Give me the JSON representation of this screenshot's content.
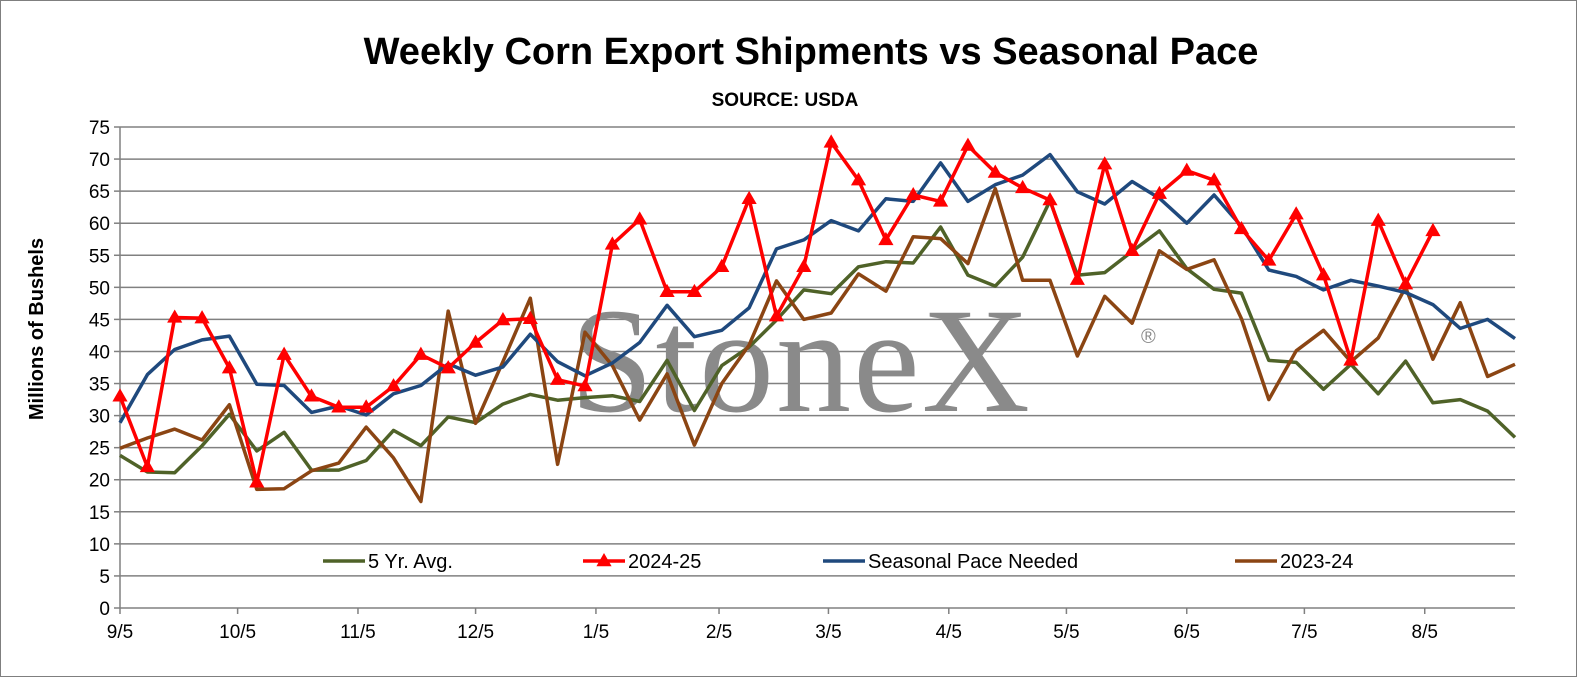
{
  "chart_data": {
    "type": "line",
    "title": "Weekly Corn Export Shipments vs Seasonal Pace",
    "subtitle": "SOURCE: USDA",
    "ylabel": "Millions of Bushels",
    "ylim": [
      0,
      75
    ],
    "yticks": [
      0,
      5,
      10,
      15,
      20,
      25,
      30,
      35,
      40,
      45,
      50,
      55,
      60,
      65,
      70,
      75
    ],
    "week_count": 52,
    "xticks": [
      {
        "label": "9/5",
        "week": 0
      },
      {
        "label": "10/5",
        "week": 4.3
      },
      {
        "label": "11/5",
        "week": 8.7
      },
      {
        "label": "12/5",
        "week": 13
      },
      {
        "label": "1/5",
        "week": 17.4
      },
      {
        "label": "2/5",
        "week": 21.9
      },
      {
        "label": "3/5",
        "week": 25.9
      },
      {
        "label": "4/5",
        "week": 30.3
      },
      {
        "label": "5/5",
        "week": 34.6
      },
      {
        "label": "6/5",
        "week": 39
      },
      {
        "label": "7/5",
        "week": 43.3
      },
      {
        "label": "8/5",
        "week": 47.7
      }
    ],
    "grid": true,
    "legend_position": "bottom",
    "watermark": "StoneX",
    "watermark_mark": "®",
    "series": [
      {
        "name": "5 Yr. Avg.",
        "color": "#4f6228",
        "marker": "none",
        "values": [
          23.8,
          21.2,
          21.1,
          25.3,
          30.2,
          24.5,
          27.4,
          21.5,
          21.5,
          23.0,
          27.7,
          25.3,
          29.8,
          28.9,
          31.8,
          33.3,
          32.4,
          32.8,
          33.1,
          32.2,
          38.6,
          30.8,
          37.8,
          40.7,
          44.9,
          49.6,
          49.0,
          53.2,
          54.0,
          53.8,
          59.4,
          51.9,
          50.2,
          54.7,
          63.5,
          51.9,
          52.3,
          55.6,
          58.8,
          52.9,
          49.7,
          49.1,
          38.6,
          38.3,
          34.1,
          38.0,
          33.4,
          38.5,
          32.0,
          32.5,
          30.7,
          26.6
        ]
      },
      {
        "name": "2024-25",
        "color": "#ff0000",
        "marker": "triangle",
        "values": [
          33.0,
          22.0,
          45.3,
          45.2,
          37.4,
          19.6,
          39.5,
          33.0,
          31.3,
          31.3,
          34.6,
          39.5,
          37.4,
          41.4,
          44.9,
          45.1,
          35.6,
          34.6,
          56.7,
          60.6,
          49.3,
          49.3,
          53.2,
          63.8,
          45.5,
          53.2,
          72.6,
          66.7,
          57.4,
          64.4,
          63.4,
          72.1,
          67.9,
          65.5,
          63.6,
          51.2,
          69.2,
          55.7,
          64.6,
          68.2,
          66.7,
          59.1,
          54.2,
          61.4,
          51.9,
          38.6,
          60.4,
          50.5,
          58.8
        ]
      },
      {
        "name": "Seasonal Pace Needed",
        "color": "#1f497d",
        "marker": "none",
        "values": [
          28.9,
          36.4,
          40.3,
          41.8,
          42.4,
          34.9,
          34.7,
          30.5,
          31.5,
          30.1,
          33.4,
          34.7,
          38.1,
          36.3,
          37.6,
          42.7,
          38.4,
          36.2,
          38.2,
          41.4,
          47.2,
          42.3,
          43.3,
          46.8,
          56.0,
          57.4,
          60.4,
          58.8,
          63.8,
          63.4,
          69.4,
          63.4,
          66.0,
          67.5,
          70.7,
          64.9,
          63.0,
          66.5,
          63.9,
          60.0,
          64.4,
          59.5,
          52.7,
          51.7,
          49.6,
          51.1,
          50.2,
          49.2,
          47.3,
          43.6,
          45.0,
          42.0
        ]
      },
      {
        "name": "2023-24",
        "color": "#8b4513",
        "marker": "none",
        "values": [
          24.9,
          26.5,
          27.9,
          26.2,
          31.7,
          18.5,
          18.6,
          21.4,
          22.6,
          28.2,
          23.4,
          16.6,
          46.3,
          28.8,
          38.4,
          48.3,
          22.4,
          43.0,
          37.8,
          29.3,
          36.5,
          25.4,
          35.0,
          41.0,
          51.0,
          45.0,
          46.0,
          52.1,
          49.4,
          57.9,
          57.6,
          53.7,
          65.4,
          51.1,
          51.1,
          39.3,
          48.6,
          44.4,
          55.7,
          52.8,
          54.3,
          45.1,
          32.5,
          40.1,
          43.3,
          38.4,
          42.1,
          50.0,
          38.8,
          47.6,
          36.1,
          38.0
        ]
      }
    ]
  }
}
